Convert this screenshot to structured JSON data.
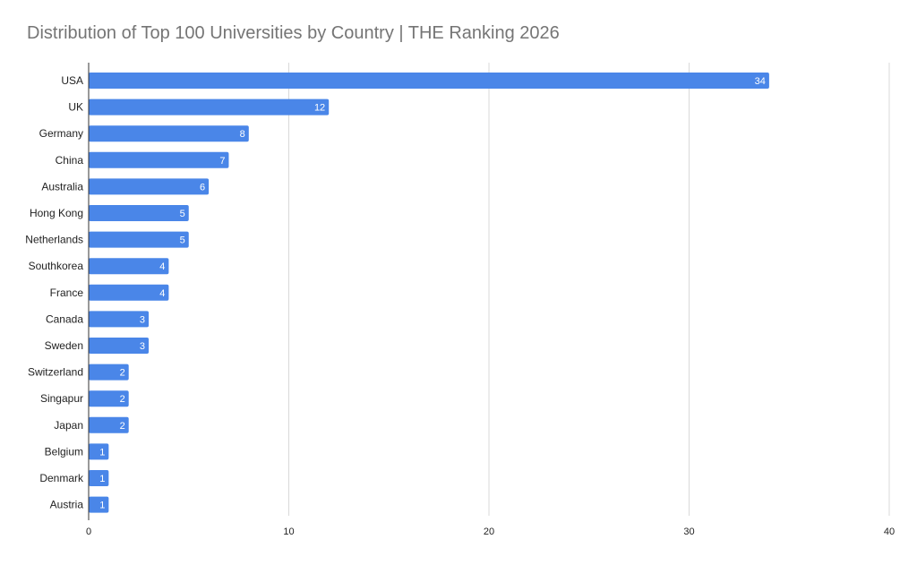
{
  "chart_data": {
    "type": "bar",
    "orientation": "horizontal",
    "title": "Distribution of Top 100 Universities by Country | THE Ranking 2026",
    "xlabel": "",
    "ylabel": "",
    "categories": [
      "USA",
      "UK",
      "Germany",
      "China",
      "Australia",
      "Hong Kong",
      "Netherlands",
      "Southkorea",
      "France",
      "Canada",
      "Sweden",
      "Switzerland",
      "Singapur",
      "Japan",
      "Belgium",
      "Denmark",
      "Austria"
    ],
    "values": [
      34,
      12,
      8,
      7,
      6,
      5,
      5,
      4,
      4,
      3,
      3,
      2,
      2,
      2,
      1,
      1,
      1
    ],
    "xlim": [
      0,
      40
    ],
    "xticks": [
      0,
      10,
      20,
      30,
      40
    ],
    "grid": true,
    "data_labels": true,
    "bar_color": "#4a86e8",
    "grid_color": "#d9d9d9"
  }
}
